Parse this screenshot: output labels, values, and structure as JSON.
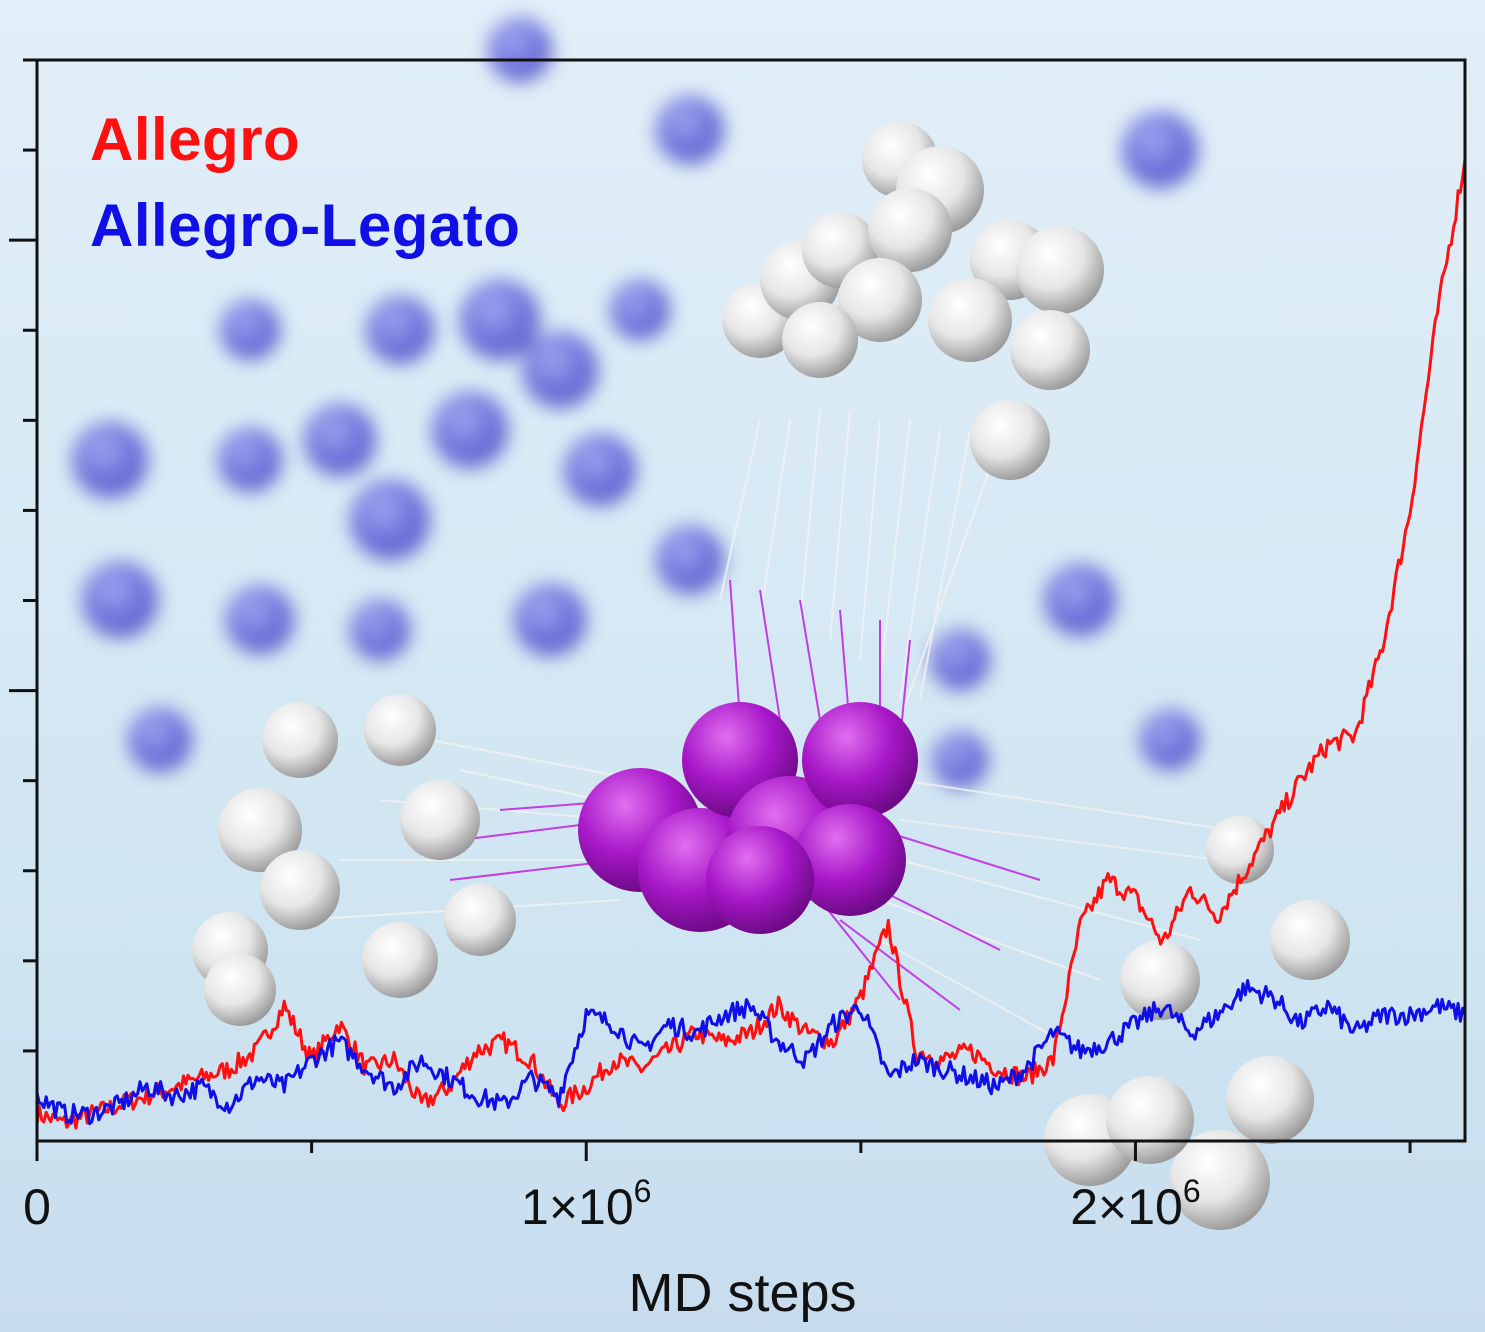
{
  "chart_data": {
    "type": "line",
    "title": "",
    "xlabel": "MD steps",
    "ylabel": "",
    "xlim": [
      0,
      2600000
    ],
    "x_ticks": [
      {
        "value": 0,
        "base": "0",
        "exp": ""
      },
      {
        "value": 1000000,
        "base": "1×10",
        "exp": "6"
      },
      {
        "value": 2000000,
        "base": "2×10",
        "exp": "6"
      }
    ],
    "x_minor_ticks": [
      500000,
      1500000,
      2500000
    ],
    "ylim": [
      0,
      12
    ],
    "y_tick_count": 12,
    "legend": {
      "placement": "top-left"
    },
    "series": [
      {
        "name": "Allegro",
        "color": "#ff1010",
        "x": [
          0,
          50000,
          100000,
          150000,
          200000,
          250000,
          300000,
          350000,
          400000,
          450000,
          500000,
          550000,
          600000,
          650000,
          700000,
          750000,
          800000,
          850000,
          900000,
          950000,
          1000000,
          1050000,
          1100000,
          1150000,
          1200000,
          1250000,
          1300000,
          1350000,
          1400000,
          1450000,
          1500000,
          1550000,
          1600000,
          1650000,
          1700000,
          1750000,
          1800000,
          1850000,
          1900000,
          1950000,
          2000000,
          2050000,
          2100000,
          2150000,
          2200000,
          2250000,
          2300000,
          2350000,
          2400000,
          2450000,
          2500000,
          2550000,
          2600000
        ],
        "values": [
          0.3,
          0.2,
          0.3,
          0.4,
          0.5,
          0.6,
          0.7,
          0.8,
          1.0,
          1.5,
          0.9,
          1.3,
          0.8,
          0.9,
          0.4,
          0.6,
          1.0,
          1.1,
          0.9,
          0.4,
          0.6,
          0.9,
          0.8,
          1.0,
          1.2,
          1.1,
          1.2,
          1.5,
          1.2,
          1.1,
          1.6,
          2.4,
          1.0,
          0.9,
          1.0,
          0.8,
          0.7,
          0.9,
          2.4,
          2.9,
          2.7,
          2.2,
          2.8,
          2.5,
          3.0,
          3.5,
          4.0,
          4.4,
          4.5,
          5.5,
          7.0,
          9.2,
          10.9
        ]
      },
      {
        "name": "Allegro-Legato",
        "color": "#1010e6",
        "x": [
          0,
          50000,
          100000,
          150000,
          200000,
          250000,
          300000,
          350000,
          400000,
          450000,
          500000,
          550000,
          600000,
          650000,
          700000,
          750000,
          800000,
          850000,
          900000,
          950000,
          1000000,
          1050000,
          1100000,
          1150000,
          1200000,
          1250000,
          1300000,
          1350000,
          1400000,
          1450000,
          1500000,
          1550000,
          1600000,
          1650000,
          1700000,
          1750000,
          1800000,
          1850000,
          1900000,
          1950000,
          2000000,
          2050000,
          2100000,
          2150000,
          2200000,
          2250000,
          2300000,
          2350000,
          2400000,
          2450000,
          2500000,
          2550000,
          2600000
        ],
        "values": [
          0.5,
          0.3,
          0.3,
          0.4,
          0.6,
          0.5,
          0.6,
          0.4,
          0.7,
          0.6,
          0.9,
          1.1,
          0.8,
          0.6,
          0.9,
          0.7,
          0.5,
          0.4,
          0.7,
          0.5,
          1.4,
          1.3,
          1.0,
          1.3,
          1.2,
          1.4,
          1.5,
          1.1,
          0.9,
          1.3,
          1.5,
          0.7,
          0.9,
          0.8,
          0.7,
          0.6,
          0.8,
          1.2,
          1.0,
          1.1,
          1.3,
          1.5,
          1.2,
          1.4,
          1.7,
          1.6,
          1.3,
          1.5,
          1.2,
          1.4,
          1.4,
          1.5,
          1.4
        ]
      }
    ]
  }
}
